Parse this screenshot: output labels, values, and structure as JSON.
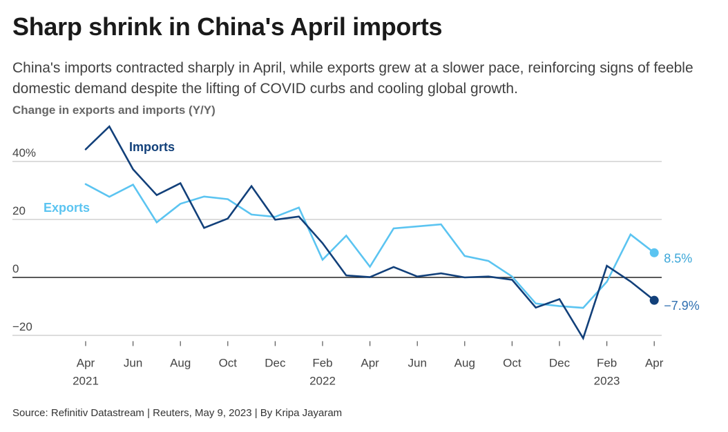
{
  "header": {
    "title": "Sharp shrink in China's April imports",
    "subtitle": "China's imports contracted sharply in April, while exports grew at a slower pace, reinforcing signs of feeble domestic demand despite the lifting of COVID curbs and cooling global growth.",
    "chart_label": "Change in exports and imports (Y/Y)"
  },
  "footer": {
    "source": "Source: Refinitiv Datastream | Reuters, May 9, 2023 | By Kripa Jayaram"
  },
  "colors": {
    "exports": "#5bc4f1",
    "imports": "#12407a",
    "grid": "#c8c8c8",
    "zero_line": "#222222"
  },
  "chart_data": {
    "type": "line",
    "title": "Change in exports and imports (Y/Y)",
    "x": [
      "2021-04",
      "2021-05",
      "2021-06",
      "2021-07",
      "2021-08",
      "2021-09",
      "2021-10",
      "2021-11",
      "2021-12",
      "2022-01",
      "2022-02",
      "2022-03",
      "2022-04",
      "2022-05",
      "2022-06",
      "2022-07",
      "2022-08",
      "2022-09",
      "2022-10",
      "2022-11",
      "2022-12",
      "2023-01",
      "2023-02",
      "2023-03",
      "2023-04"
    ],
    "ylim": [
      -22,
      52
    ],
    "yticks": [
      {
        "value": 40,
        "label": "40%"
      },
      {
        "value": 20,
        "label": "20"
      },
      {
        "value": 0,
        "label": "0"
      },
      {
        "value": -20,
        "label": "−20"
      }
    ],
    "xticks": [
      {
        "x": "2021-04",
        "label": "Apr",
        "year": "2021"
      },
      {
        "x": "2021-06",
        "label": "Jun",
        "year": ""
      },
      {
        "x": "2021-08",
        "label": "Aug",
        "year": ""
      },
      {
        "x": "2021-10",
        "label": "Oct",
        "year": ""
      },
      {
        "x": "2021-12",
        "label": "Dec",
        "year": ""
      },
      {
        "x": "2022-02",
        "label": "Feb",
        "year": "2022"
      },
      {
        "x": "2022-04",
        "label": "Apr",
        "year": ""
      },
      {
        "x": "2022-06",
        "label": "Jun",
        "year": ""
      },
      {
        "x": "2022-08",
        "label": "Aug",
        "year": ""
      },
      {
        "x": "2022-10",
        "label": "Oct",
        "year": ""
      },
      {
        "x": "2022-12",
        "label": "Dec",
        "year": ""
      },
      {
        "x": "2023-02",
        "label": "Feb",
        "year": "2023"
      },
      {
        "x": "2023-04",
        "label": "Apr",
        "year": ""
      }
    ],
    "grid": true,
    "series": [
      {
        "name": "Imports",
        "values": [
          44.2,
          52.1,
          37.3,
          28.4,
          32.5,
          17.1,
          20.3,
          31.5,
          19.9,
          21.0,
          11.8,
          0.7,
          0.1,
          3.6,
          0.3,
          1.4,
          0.0,
          0.3,
          -0.8,
          -10.4,
          -7.5,
          -21.0,
          4.0,
          -1.4,
          -7.9
        ],
        "end_label": "−7.9%"
      },
      {
        "name": "Exports",
        "values": [
          32.2,
          27.8,
          32.0,
          19.0,
          25.4,
          27.9,
          27.0,
          21.7,
          20.9,
          24.1,
          6.1,
          14.4,
          3.7,
          16.9,
          17.6,
          18.3,
          7.4,
          5.7,
          0.3,
          -9.0,
          -9.9,
          -10.5,
          -1.5,
          14.8,
          8.5
        ],
        "end_label": "8.5%"
      }
    ]
  }
}
